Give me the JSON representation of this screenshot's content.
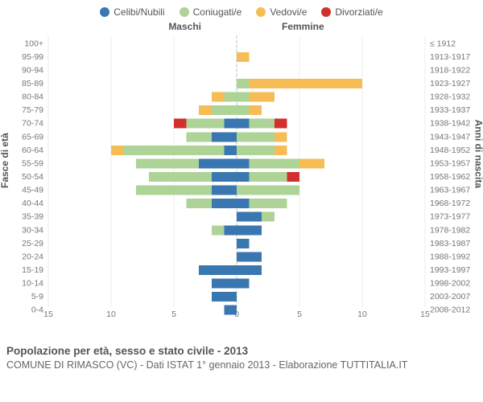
{
  "legend": [
    {
      "label": "Celibi/Nubili",
      "color": "#3a77b0"
    },
    {
      "label": "Coniugati/e",
      "color": "#aed397"
    },
    {
      "label": "Vedovi/e",
      "color": "#f6bd57"
    },
    {
      "label": "Divorziati/e",
      "color": "#d22f2f"
    }
  ],
  "headers": {
    "male": "Maschi",
    "female": "Femmine"
  },
  "axes": {
    "left_title": "Fasce di età",
    "right_title": "Anni di nascita",
    "xmin": -15,
    "xmax": 15,
    "xtick_step": 5
  },
  "colors": {
    "background": "#ffffff",
    "grid": "#eeeeee",
    "zero_line": "#bbbbbb",
    "tick_text": "#777777"
  },
  "rows": [
    {
      "age": "100+",
      "birth": "≤ 1912",
      "m": {
        "c": 0,
        "co": 0,
        "v": 0,
        "d": 0
      },
      "f": {
        "c": 0,
        "co": 0,
        "v": 0,
        "d": 0
      }
    },
    {
      "age": "95-99",
      "birth": "1913-1917",
      "m": {
        "c": 0,
        "co": 0,
        "v": 0,
        "d": 0
      },
      "f": {
        "c": 0,
        "co": 0,
        "v": 1,
        "d": 0
      }
    },
    {
      "age": "90-94",
      "birth": "1918-1922",
      "m": {
        "c": 0,
        "co": 0,
        "v": 0,
        "d": 0
      },
      "f": {
        "c": 0,
        "co": 0,
        "v": 0,
        "d": 0
      }
    },
    {
      "age": "85-89",
      "birth": "1923-1927",
      "m": {
        "c": 0,
        "co": 0,
        "v": 0,
        "d": 0
      },
      "f": {
        "c": 0,
        "co": 1,
        "v": 9,
        "d": 0
      }
    },
    {
      "age": "80-84",
      "birth": "1928-1932",
      "m": {
        "c": 0,
        "co": 1,
        "v": 1,
        "d": 0
      },
      "f": {
        "c": 0,
        "co": 1,
        "v": 2,
        "d": 0
      }
    },
    {
      "age": "75-79",
      "birth": "1933-1937",
      "m": {
        "c": 0,
        "co": 2,
        "v": 1,
        "d": 0
      },
      "f": {
        "c": 0,
        "co": 1,
        "v": 1,
        "d": 0
      }
    },
    {
      "age": "70-74",
      "birth": "1938-1942",
      "m": {
        "c": 1,
        "co": 3,
        "v": 0,
        "d": 1
      },
      "f": {
        "c": 1,
        "co": 2,
        "v": 0,
        "d": 1
      }
    },
    {
      "age": "65-69",
      "birth": "1943-1947",
      "m": {
        "c": 2,
        "co": 2,
        "v": 0,
        "d": 0
      },
      "f": {
        "c": 0,
        "co": 3,
        "v": 1,
        "d": 0
      }
    },
    {
      "age": "60-64",
      "birth": "1948-1952",
      "m": {
        "c": 1,
        "co": 8,
        "v": 1,
        "d": 0
      },
      "f": {
        "c": 0,
        "co": 3,
        "v": 1,
        "d": 0
      }
    },
    {
      "age": "55-59",
      "birth": "1953-1957",
      "m": {
        "c": 3,
        "co": 5,
        "v": 0,
        "d": 0
      },
      "f": {
        "c": 1,
        "co": 4,
        "v": 2,
        "d": 0
      }
    },
    {
      "age": "50-54",
      "birth": "1958-1962",
      "m": {
        "c": 2,
        "co": 5,
        "v": 0,
        "d": 0
      },
      "f": {
        "c": 1,
        "co": 3,
        "v": 0,
        "d": 1
      }
    },
    {
      "age": "45-49",
      "birth": "1963-1967",
      "m": {
        "c": 2,
        "co": 6,
        "v": 0,
        "d": 0
      },
      "f": {
        "c": 0,
        "co": 5,
        "v": 0,
        "d": 0
      }
    },
    {
      "age": "40-44",
      "birth": "1968-1972",
      "m": {
        "c": 2,
        "co": 2,
        "v": 0,
        "d": 0
      },
      "f": {
        "c": 1,
        "co": 3,
        "v": 0,
        "d": 0
      }
    },
    {
      "age": "35-39",
      "birth": "1973-1977",
      "m": {
        "c": 0,
        "co": 0,
        "v": 0,
        "d": 0
      },
      "f": {
        "c": 2,
        "co": 1,
        "v": 0,
        "d": 0
      }
    },
    {
      "age": "30-34",
      "birth": "1978-1982",
      "m": {
        "c": 1,
        "co": 1,
        "v": 0,
        "d": 0
      },
      "f": {
        "c": 2,
        "co": 0,
        "v": 0,
        "d": 0
      }
    },
    {
      "age": "25-29",
      "birth": "1983-1987",
      "m": {
        "c": 0,
        "co": 0,
        "v": 0,
        "d": 0
      },
      "f": {
        "c": 1,
        "co": 0,
        "v": 0,
        "d": 0
      }
    },
    {
      "age": "20-24",
      "birth": "1988-1992",
      "m": {
        "c": 0,
        "co": 0,
        "v": 0,
        "d": 0
      },
      "f": {
        "c": 2,
        "co": 0,
        "v": 0,
        "d": 0
      }
    },
    {
      "age": "15-19",
      "birth": "1993-1997",
      "m": {
        "c": 3,
        "co": 0,
        "v": 0,
        "d": 0
      },
      "f": {
        "c": 2,
        "co": 0,
        "v": 0,
        "d": 0
      }
    },
    {
      "age": "10-14",
      "birth": "1998-2002",
      "m": {
        "c": 2,
        "co": 0,
        "v": 0,
        "d": 0
      },
      "f": {
        "c": 1,
        "co": 0,
        "v": 0,
        "d": 0
      }
    },
    {
      "age": "5-9",
      "birth": "2003-2007",
      "m": {
        "c": 2,
        "co": 0,
        "v": 0,
        "d": 0
      },
      "f": {
        "c": 0,
        "co": 0,
        "v": 0,
        "d": 0
      }
    },
    {
      "age": "0-4",
      "birth": "2008-2012",
      "m": {
        "c": 1,
        "co": 0,
        "v": 0,
        "d": 0
      },
      "f": {
        "c": 0,
        "co": 0,
        "v": 0,
        "d": 0
      }
    }
  ],
  "footer": {
    "title": "Popolazione per età, sesso e stato civile - 2013",
    "sub": "COMUNE DI RIMASCO (VC) - Dati ISTAT 1° gennaio 2013 - Elaborazione TUTTITALIA.IT"
  }
}
